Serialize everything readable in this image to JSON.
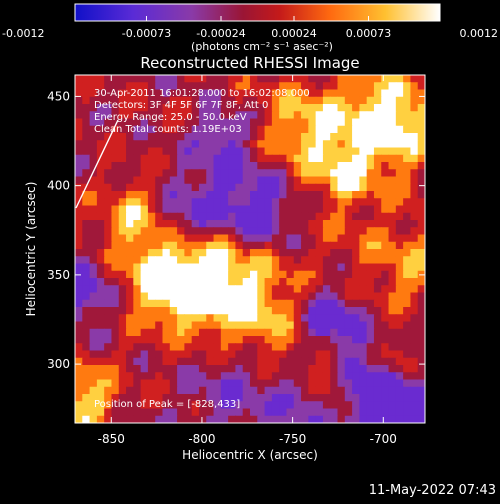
{
  "chart_data": {
    "type": "heatmap",
    "title": "Reconstructed RHESSI Image",
    "xlabel": "Heliocentric X (arcsec)",
    "ylabel": "Heliocentric Y (arcsec)",
    "xlim": [
      -870,
      -677
    ],
    "ylim": [
      267,
      462
    ],
    "x_ticks": [
      "-850",
      "-800",
      "-750",
      "-700"
    ],
    "x_tick_values": [
      -850,
      -800,
      -750,
      -700
    ],
    "y_ticks": [
      "300",
      "350",
      "400",
      "450"
    ],
    "y_tick_values": [
      300,
      350,
      400,
      450
    ],
    "colorbar": {
      "range": [
        -0.0012,
        0.0012
      ],
      "tick_labels": [
        "-0.0012",
        "-0.00073",
        "-0.00024",
        "0.00024",
        "0.00073",
        "0.0012"
      ],
      "tick_values": [
        -0.0012,
        -0.00073,
        -0.00024,
        0.00024,
        0.00073,
        0.0012
      ],
      "units_label": "(photons cm⁻² s⁻¹ asec⁻²)",
      "colors": [
        "#1010c8",
        "#6a2bd0",
        "#8a3aa8",
        "#a0183a",
        "#d02020",
        "#ff7a10",
        "#ffd040",
        "#ffffff"
      ]
    },
    "annotations": [
      "30-Apr-2011 16:01:28.000 to 16:02:08.000",
      "Detectors: 3F 4F 5F 6F 7F 8F, Att 0",
      "Energy Range: 25.0 - 50.0 keV",
      "Clean   Total counts: 1.19E+03"
    ],
    "peak_label": "Position of Peak = [-828,433]",
    "limb_line": true
  },
  "footer": {
    "timestamp": "11-May-2022 07:43"
  }
}
